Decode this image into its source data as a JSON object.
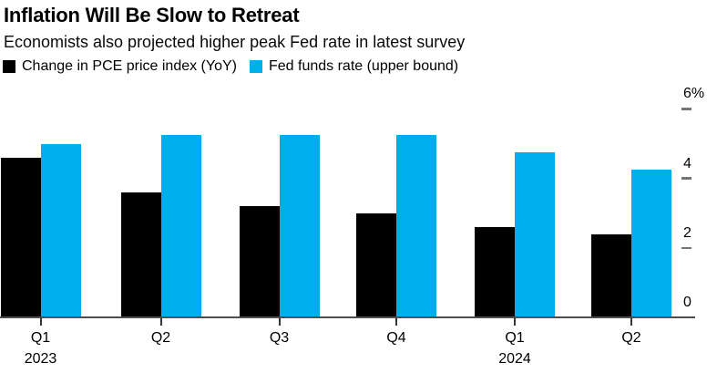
{
  "header": {
    "title": "Inflation Will Be Slow to Retreat",
    "subtitle": "Economists also projected higher peak Fed rate in latest survey"
  },
  "legend": {
    "items": [
      {
        "label": "Change in PCE price index (YoY)",
        "color": "#000000"
      },
      {
        "label": "Fed funds rate (upper bound)",
        "color": "#00adef"
      }
    ]
  },
  "chart_data": {
    "type": "bar",
    "title": "Inflation Will Be Slow to Retreat",
    "subtitle": "Economists also projected higher peak Fed rate in latest survey",
    "categories": [
      "Q1 2023",
      "Q2 2023",
      "Q3 2023",
      "Q4 2023",
      "Q1 2024",
      "Q2 2024"
    ],
    "x_tick_labels": [
      "Q1",
      "Q2",
      "Q3",
      "Q4",
      "Q1",
      "Q2"
    ],
    "year_labels": [
      {
        "index": 0,
        "text": "2023"
      },
      {
        "index": 4,
        "text": "2024"
      }
    ],
    "series": [
      {
        "name": "Change in PCE price index (YoY)",
        "color": "#000000",
        "values": [
          4.6,
          3.6,
          3.2,
          3.0,
          2.6,
          2.4
        ]
      },
      {
        "name": "Fed funds rate (upper bound)",
        "color": "#00adef",
        "values": [
          5.0,
          5.25,
          5.25,
          5.25,
          4.75,
          4.25
        ]
      }
    ],
    "y_axis": {
      "side": "right",
      "min": 0,
      "max": 6,
      "ticks": [
        0,
        2,
        4,
        6
      ],
      "tick_labels": [
        "0",
        "2",
        "4",
        "6%"
      ]
    },
    "grid": false,
    "legend_position": "top-left"
  },
  "colors": {
    "background": "#ffffff",
    "text": "#000000",
    "axis_line": "#4d4d4d",
    "tick_dash": "#757575",
    "x_tick": "#333333"
  }
}
